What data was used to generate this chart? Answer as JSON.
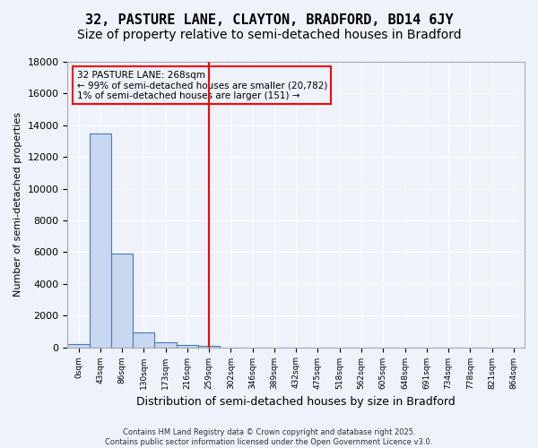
{
  "title": "32, PASTURE LANE, CLAYTON, BRADFORD, BD14 6JY",
  "subtitle": "Size of property relative to semi-detached houses in Bradford",
  "xlabel": "Distribution of semi-detached houses by size in Bradford",
  "ylabel": "Number of semi-detached properties",
  "bin_labels": [
    "0sqm",
    "43sqm",
    "86sqm",
    "130sqm",
    "173sqm",
    "216sqm",
    "259sqm",
    "302sqm",
    "346sqm",
    "389sqm",
    "432sqm",
    "475sqm",
    "518sqm",
    "562sqm",
    "605sqm",
    "648sqm",
    "691sqm",
    "734sqm",
    "778sqm",
    "821sqm",
    "864sqm"
  ],
  "bar_values": [
    200,
    13500,
    5900,
    950,
    300,
    150,
    100,
    0,
    0,
    0,
    0,
    0,
    0,
    0,
    0,
    0,
    0,
    0,
    0,
    0,
    0
  ],
  "bar_color": "#c8d8f0",
  "bar_edge_color": "#4a7ab5",
  "background_color": "#eef2fb",
  "grid_color": "#ffffff",
  "red_line_bin": 6,
  "annotation_text_line1": "32 PASTURE LANE: 268sqm",
  "annotation_text_line2": "← 99% of semi-detached houses are smaller (20,782)",
  "annotation_text_line3": "1% of semi-detached houses are larger (151) →",
  "ylim": [
    0,
    18000
  ],
  "yticks": [
    0,
    2000,
    4000,
    6000,
    8000,
    10000,
    12000,
    14000,
    16000,
    18000
  ],
  "footer_line1": "Contains HM Land Registry data © Crown copyright and database right 2025.",
  "footer_line2": "Contains public sector information licensed under the Open Government Licence v3.0.",
  "title_fontsize": 11,
  "subtitle_fontsize": 10
}
